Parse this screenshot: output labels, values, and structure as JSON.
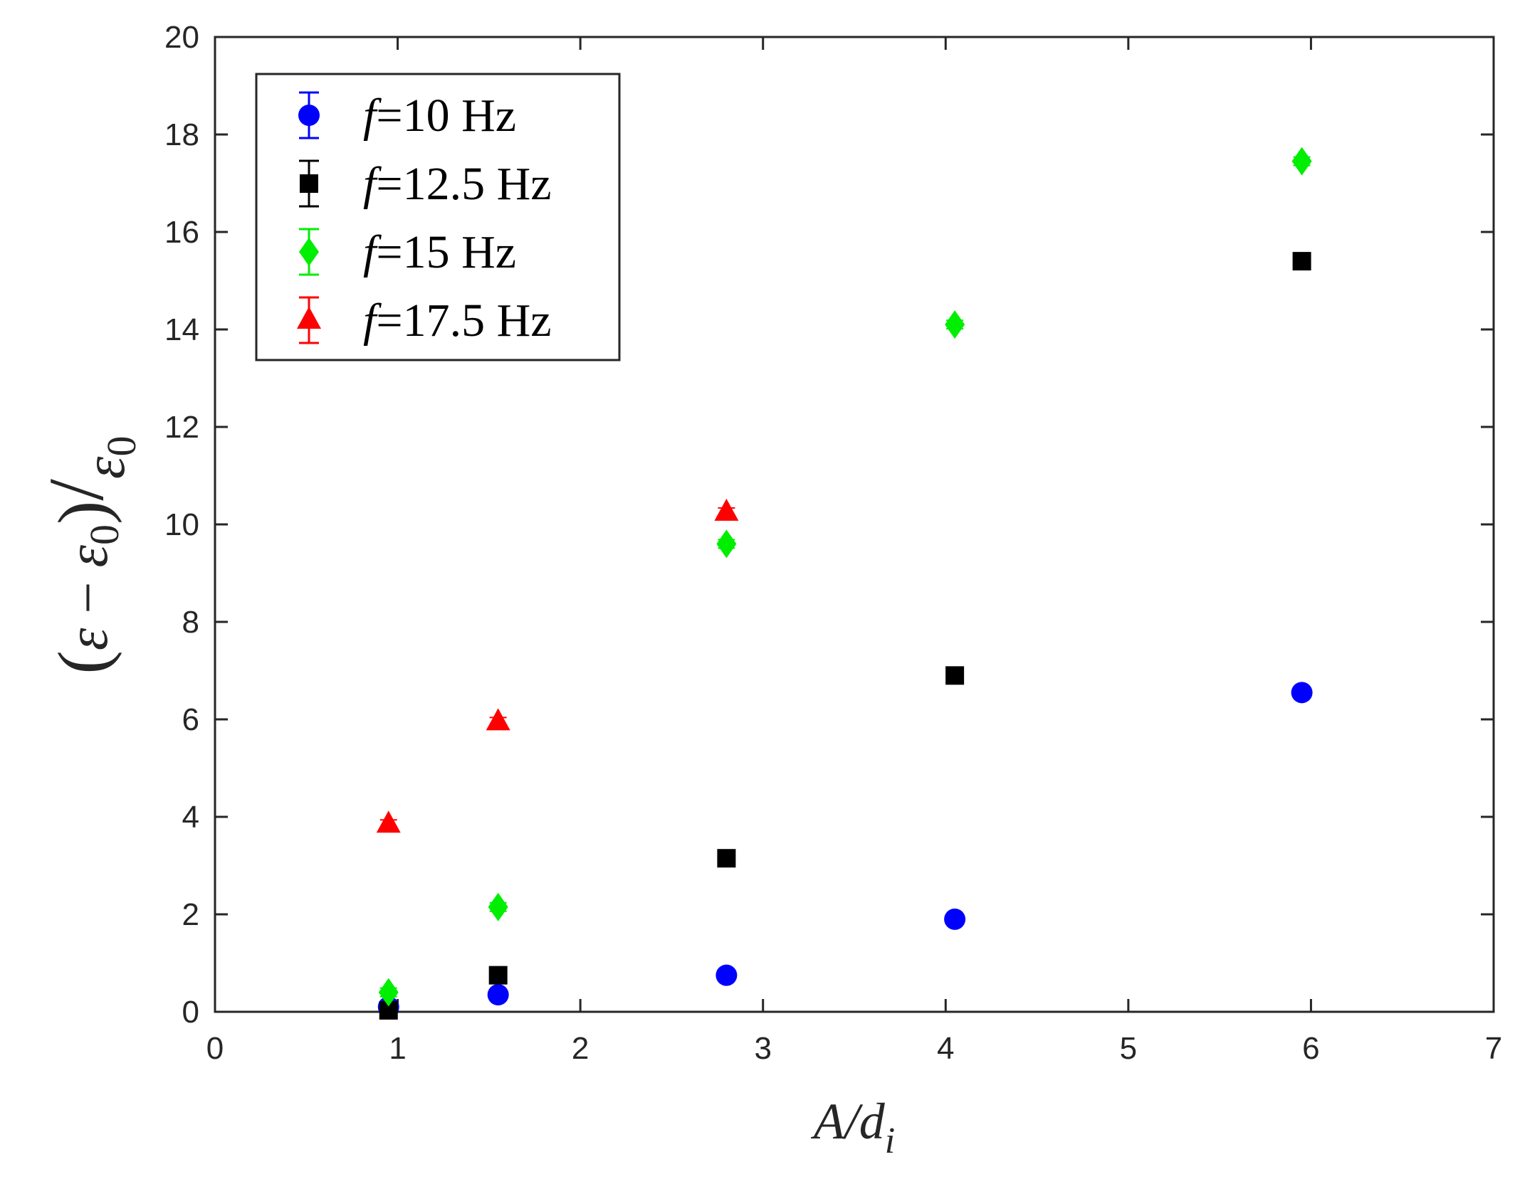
{
  "chart_data": {
    "type": "scatter",
    "xlabel": "A/d_i",
    "ylabel": "(ε − ε₀)/ε₀",
    "xlim": [
      0,
      7
    ],
    "ylim": [
      0,
      20
    ],
    "xticks": [
      "0",
      "1",
      "2",
      "3",
      "4",
      "5",
      "6",
      "7"
    ],
    "yticks": [
      "0",
      "2",
      "4",
      "6",
      "8",
      "10",
      "12",
      "14",
      "16",
      "18",
      "20"
    ],
    "grid": false,
    "legend_position": "top-left",
    "series": [
      {
        "name": "f=10 Hz",
        "label_f": "f",
        "label_rest": "=10 Hz",
        "marker": "circle",
        "color": "#0000ff",
        "points": [
          [
            0.95,
            0.1
          ],
          [
            1.55,
            0.35
          ],
          [
            2.8,
            0.75
          ],
          [
            4.05,
            1.9
          ],
          [
            5.95,
            6.55
          ]
        ]
      },
      {
        "name": "f=12.5 Hz",
        "label_f": "f",
        "label_rest": "=12.5 Hz",
        "marker": "square",
        "color": "#000000",
        "points": [
          [
            0.95,
            0.03
          ],
          [
            1.55,
            0.75
          ],
          [
            2.8,
            3.15
          ],
          [
            4.05,
            6.9
          ],
          [
            5.95,
            15.4
          ]
        ]
      },
      {
        "name": "f=15 Hz",
        "label_f": "f",
        "label_rest": "=15 Hz",
        "marker": "diamond",
        "color": "#00ee00",
        "points": [
          [
            0.95,
            0.4
          ],
          [
            1.55,
            2.15
          ],
          [
            2.8,
            9.6
          ],
          [
            4.05,
            14.1
          ],
          [
            5.95,
            17.45
          ]
        ]
      },
      {
        "name": "f=17.5 Hz",
        "label_f": "f",
        "label_rest": "=17.5 Hz",
        "marker": "triangle",
        "color": "#ff0000",
        "points": [
          [
            0.95,
            3.85
          ],
          [
            1.55,
            5.95
          ],
          [
            2.8,
            10.25
          ]
        ]
      }
    ]
  }
}
